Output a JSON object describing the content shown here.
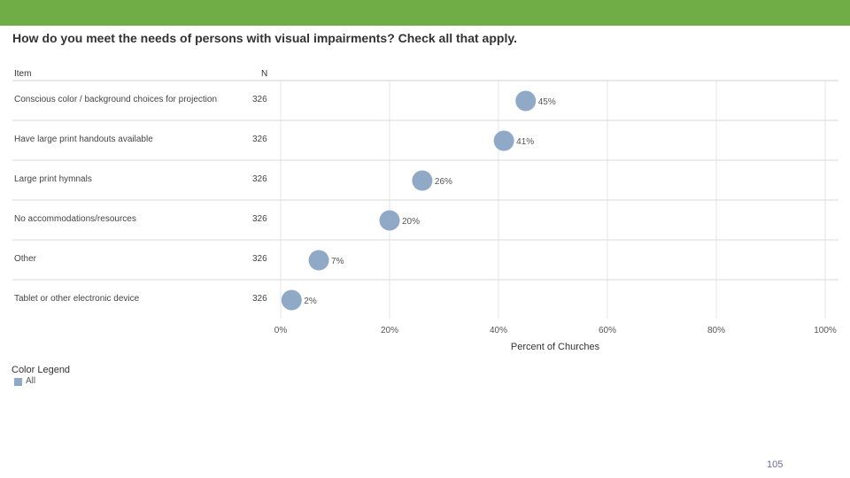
{
  "page": {
    "number": "105",
    "accent_color": "#70ad47"
  },
  "chart_data": {
    "type": "scatter",
    "title": "How do you meet the needs of persons with visual impairments? Check all that apply.",
    "column_headers": {
      "item": "Item",
      "n": "N"
    },
    "rows": [
      {
        "item": "Conscious color / background choices for projection",
        "n": "326",
        "value": 45,
        "label": "45%"
      },
      {
        "item": "Have large print handouts available",
        "n": "326",
        "value": 41,
        "label": "41%"
      },
      {
        "item": "Large print hymnals",
        "n": "326",
        "value": 26,
        "label": "26%"
      },
      {
        "item": "No accommodations/resources",
        "n": "326",
        "value": 20,
        "label": "20%"
      },
      {
        "item": "Other",
        "n": "326",
        "value": 7,
        "label": "7%"
      },
      {
        "item": "Tablet or other electronic device",
        "n": "326",
        "value": 2,
        "label": "2%"
      }
    ],
    "xlabel": "Percent of Churches",
    "xlim": [
      0,
      100
    ],
    "xticks": [
      "0%",
      "20%",
      "40%",
      "60%",
      "80%",
      "100%"
    ],
    "series_color": "#8fa9c6",
    "legend": {
      "title": "Color Legend",
      "entries": [
        "All"
      ],
      "position": "bottom-left"
    }
  }
}
